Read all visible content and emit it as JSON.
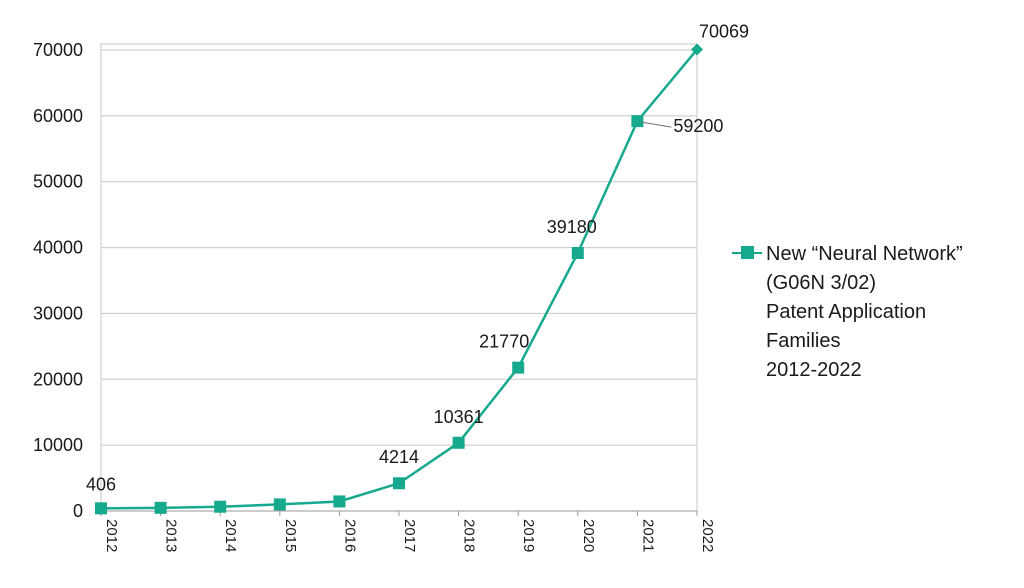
{
  "chart_data": {
    "type": "line",
    "x": [
      "2012",
      "2013",
      "2014",
      "2015",
      "2016",
      "2017",
      "2018",
      "2019",
      "2020",
      "2021",
      "2022"
    ],
    "series": [
      {
        "name_lines": [
          "New “Neural Network”",
          "(G06N 3/02)",
          "Patent Application",
          "Families",
          "2012-2022"
        ],
        "values": [
          406,
          480,
          650,
          1000,
          1450,
          4214,
          10361,
          21770,
          39180,
          59200,
          70069
        ],
        "color": "#16a98d"
      }
    ],
    "data_labels": [
      {
        "index": 0,
        "text": "406"
      },
      {
        "index": 5,
        "text": "4214"
      },
      {
        "index": 6,
        "text": "10361"
      },
      {
        "index": 7,
        "text": "21770"
      },
      {
        "index": 8,
        "text": "39180"
      },
      {
        "index": 9,
        "text": "59200"
      },
      {
        "index": 10,
        "text": "70069"
      }
    ],
    "y_ticks": [
      "0",
      "10000",
      "20000",
      "30000",
      "40000",
      "50000",
      "60000",
      "70000"
    ],
    "ylim": [
      0,
      70000
    ],
    "grid": true,
    "legend_position": "right",
    "last_marker": "diamond"
  }
}
